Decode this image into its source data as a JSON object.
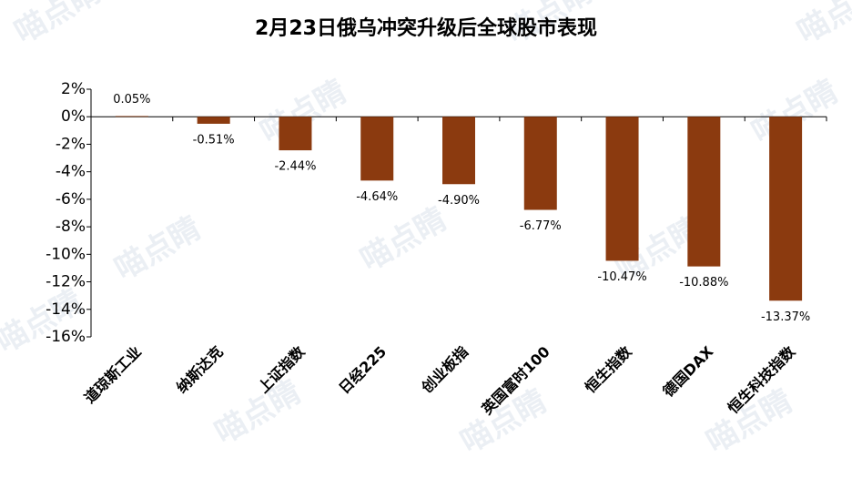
{
  "chart_data": {
    "type": "bar",
    "title": "2月23日俄乌冲突升级后全球股市表现",
    "watermark": "喵点睛",
    "categories": [
      "道琼斯工业",
      "纳斯达克",
      "上证指数",
      "日经225",
      "创业板指",
      "英国富时100",
      "恒生指数",
      "德国DAX",
      "恒生科技指数"
    ],
    "values": [
      0.05,
      -0.51,
      -2.44,
      -4.64,
      -4.9,
      -6.77,
      -10.47,
      -10.88,
      -13.37
    ],
    "value_labels": [
      "0.05%",
      "-0.51%",
      "-2.44%",
      "-4.64%",
      "-4.90%",
      "-6.77%",
      "-10.47%",
      "-10.88%",
      "-13.37%"
    ],
    "color": "#8b3a0f",
    "ylim": [
      -16,
      2
    ],
    "yticks": [
      {
        "value": 2,
        "label": "2%"
      },
      {
        "value": 0,
        "label": "0%"
      },
      {
        "value": -2,
        "label": "-2%"
      },
      {
        "value": -4,
        "label": "-4%"
      },
      {
        "value": -6,
        "label": "-6%"
      },
      {
        "value": -8,
        "label": "-8%"
      },
      {
        "value": -10,
        "label": "-10%"
      },
      {
        "value": -12,
        "label": "-12%"
      },
      {
        "value": -14,
        "label": "-14%"
      },
      {
        "value": -16,
        "label": "-16%"
      }
    ]
  }
}
